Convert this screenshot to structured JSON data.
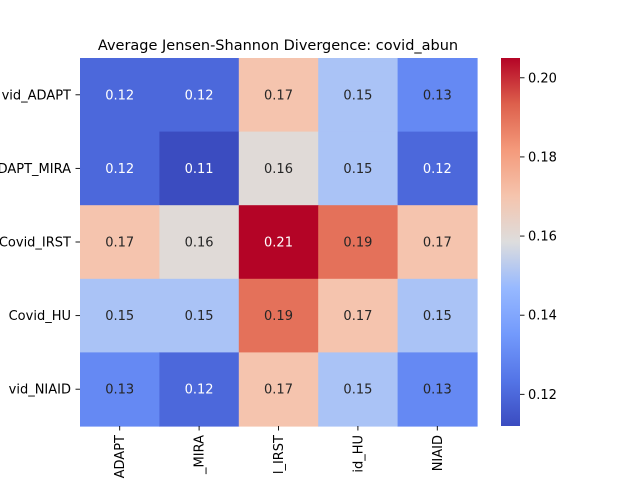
{
  "chart_data": {
    "type": "heatmap",
    "title": "Average Jensen-Shannon Divergence: covid_abun",
    "row_labels": [
      "vid_ADAPT",
      "DAPT_MIRA",
      "Covid_IRST",
      "Covid_HU",
      "vid_NIAID"
    ],
    "col_labels": [
      "ADAPT",
      "_MIRA",
      "l_IRST",
      "id_HU",
      "NIAID"
    ],
    "values": [
      [
        0.12,
        0.12,
        0.17,
        0.15,
        0.13
      ],
      [
        0.12,
        0.11,
        0.16,
        0.15,
        0.12
      ],
      [
        0.17,
        0.16,
        0.21,
        0.19,
        0.17
      ],
      [
        0.15,
        0.15,
        0.19,
        0.17,
        0.15
      ],
      [
        0.13,
        0.12,
        0.17,
        0.15,
        0.13
      ]
    ],
    "colormap": "coolwarm",
    "vmin": 0.112,
    "vmax": 0.205,
    "colorbar_ticks": [
      "0.12",
      "0.14",
      "0.16",
      "0.18",
      "0.20"
    ],
    "colorbar_tick_values": [
      0.12,
      0.14,
      0.16,
      0.18,
      0.2
    ],
    "annotation_colors": {
      "light": "#ffffff",
      "dark": "#262626"
    }
  }
}
